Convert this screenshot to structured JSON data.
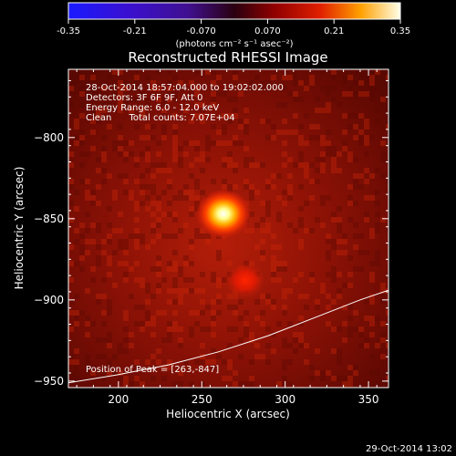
{
  "colorbar": {
    "min": -0.35,
    "max": 0.35,
    "tick_labels": [
      "-0.35",
      "-0.21",
      "-0.070",
      "0.070",
      "0.21",
      "0.35"
    ],
    "tick_values": [
      -0.35,
      -0.21,
      -0.07,
      0.07,
      0.21,
      0.35
    ],
    "unit_label": "(photons cm⁻² s⁻¹ asec⁻²)"
  },
  "chart_data": {
    "type": "heatmap",
    "title": "Reconstructed RHESSI Image",
    "xlabel": "Heliocentric X (arcsec)",
    "ylabel": "Heliocentric Y (arcsec)",
    "xlim": [
      170,
      362
    ],
    "ylim": [
      -954,
      -758
    ],
    "x_ticks": [
      200,
      250,
      300,
      350
    ],
    "y_ticks": [
      -800,
      -850,
      -900,
      -950
    ],
    "x_tick_labels": [
      "200",
      "250",
      "300",
      "350"
    ],
    "y_tick_labels": [
      "−800",
      "−850",
      "−900",
      "−950"
    ],
    "sources": [
      {
        "x": 263,
        "y": -847,
        "peak": 0.35
      },
      {
        "x": 276,
        "y": -888,
        "peak": 0.14
      }
    ],
    "limb_curve": [
      [
        170,
        -951
      ],
      [
        200,
        -946
      ],
      [
        230,
        -940
      ],
      [
        260,
        -932
      ],
      [
        290,
        -922
      ],
      [
        320,
        -910
      ],
      [
        345,
        -900
      ],
      [
        362,
        -894
      ]
    ],
    "info_lines": [
      "28-Oct-2014 18:57:04.000 to 19:02:02.000",
      "Detectors: 3F 6F 9F, Att 0",
      "Energy Range: 6.0 - 12.0 keV",
      "Clean      Total counts: 7.07E+04"
    ],
    "peak_label": "Position of Peak = [263,-847]"
  },
  "footer": {
    "timestamp": "29-Oct-2014 13:02"
  }
}
